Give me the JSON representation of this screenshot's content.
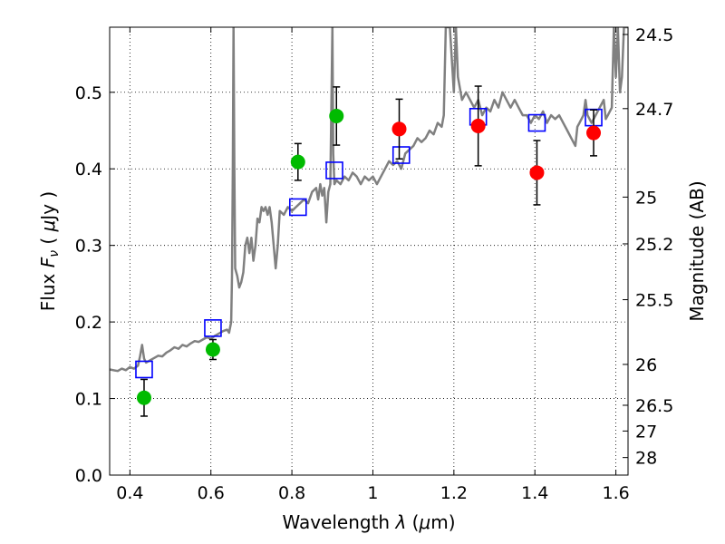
{
  "chart_data": {
    "type": "scatter",
    "xlabel": "Wavelength  λ (μm)",
    "ylabel": "Flux  F_ν  ( μJy )",
    "ylabel_parts": {
      "prefix": "Flux  ",
      "symbol": "F",
      "subscript": "ν",
      "open": "  ( ",
      "mu": "μ",
      "unit": "Jy )"
    },
    "xlabel_parts": {
      "prefix": "Wavelength  ",
      "symbol": "λ",
      "open": " (",
      "mu": "μ",
      "unit": "m)"
    },
    "y2label": "Magnitude (AB)",
    "xlim": [
      0.35,
      1.63
    ],
    "ylim": [
      0.0,
      0.585
    ],
    "xticks": [
      0.4,
      0.6,
      0.8,
      1.0,
      1.2,
      1.4,
      1.6
    ],
    "xtick_labels": [
      "0.4",
      "0.6",
      "0.8",
      "1",
      "1.2",
      "1.4",
      "1.6"
    ],
    "yticks": [
      0.0,
      0.1,
      0.2,
      0.3,
      0.4,
      0.5
    ],
    "ytick_labels": [
      "0.0",
      "0.1",
      "0.2",
      "0.3",
      "0.4",
      "0.5"
    ],
    "y2ticks": [
      24.5,
      24.7,
      25,
      25.2,
      25.5,
      26,
      26.5,
      27,
      28
    ],
    "y2tick_labels": [
      "24.5",
      "24.7",
      "25",
      "25.2",
      "25.5",
      "26",
      "26.5",
      "27",
      "28"
    ],
    "grid": true,
    "grid_style": "dotted",
    "series": [
      {
        "kind": "line",
        "color": "#808080",
        "points": [
          [
            0.35,
            0.138
          ],
          [
            0.37,
            0.136
          ],
          [
            0.38,
            0.139
          ],
          [
            0.39,
            0.137
          ],
          [
            0.4,
            0.141
          ],
          [
            0.41,
            0.139
          ],
          [
            0.42,
            0.143
          ],
          [
            0.425,
            0.155
          ],
          [
            0.43,
            0.17
          ],
          [
            0.435,
            0.152
          ],
          [
            0.44,
            0.147
          ],
          [
            0.45,
            0.15
          ],
          [
            0.46,
            0.153
          ],
          [
            0.47,
            0.156
          ],
          [
            0.48,
            0.155
          ],
          [
            0.49,
            0.16
          ],
          [
            0.5,
            0.163
          ],
          [
            0.51,
            0.167
          ],
          [
            0.52,
            0.165
          ],
          [
            0.53,
            0.17
          ],
          [
            0.54,
            0.168
          ],
          [
            0.55,
            0.172
          ],
          [
            0.56,
            0.175
          ],
          [
            0.57,
            0.174
          ],
          [
            0.58,
            0.177
          ],
          [
            0.59,
            0.18
          ],
          [
            0.6,
            0.178
          ],
          [
            0.61,
            0.182
          ],
          [
            0.62,
            0.185
          ],
          [
            0.63,
            0.188
          ],
          [
            0.64,
            0.19
          ],
          [
            0.645,
            0.186
          ],
          [
            0.65,
            0.2
          ],
          [
            0.652,
            0.26
          ],
          [
            0.654,
            0.4
          ],
          [
            0.656,
            0.585
          ],
          [
            0.658,
            0.4
          ],
          [
            0.66,
            0.27
          ],
          [
            0.665,
            0.26
          ],
          [
            0.67,
            0.245
          ],
          [
            0.675,
            0.252
          ],
          [
            0.68,
            0.265
          ],
          [
            0.685,
            0.3
          ],
          [
            0.69,
            0.31
          ],
          [
            0.695,
            0.29
          ],
          [
            0.7,
            0.31
          ],
          [
            0.705,
            0.28
          ],
          [
            0.71,
            0.3
          ],
          [
            0.715,
            0.335
          ],
          [
            0.72,
            0.33
          ],
          [
            0.725,
            0.35
          ],
          [
            0.73,
            0.345
          ],
          [
            0.735,
            0.35
          ],
          [
            0.74,
            0.34
          ],
          [
            0.745,
            0.35
          ],
          [
            0.75,
            0.33
          ],
          [
            0.755,
            0.3
          ],
          [
            0.76,
            0.27
          ],
          [
            0.765,
            0.3
          ],
          [
            0.77,
            0.345
          ],
          [
            0.78,
            0.34
          ],
          [
            0.79,
            0.35
          ],
          [
            0.8,
            0.345
          ],
          [
            0.81,
            0.35
          ],
          [
            0.82,
            0.355
          ],
          [
            0.83,
            0.36
          ],
          [
            0.84,
            0.355
          ],
          [
            0.85,
            0.37
          ],
          [
            0.86,
            0.375
          ],
          [
            0.865,
            0.36
          ],
          [
            0.87,
            0.38
          ],
          [
            0.875,
            0.365
          ],
          [
            0.88,
            0.375
          ],
          [
            0.885,
            0.33
          ],
          [
            0.89,
            0.37
          ],
          [
            0.895,
            0.38
          ],
          [
            0.9,
            0.585
          ],
          [
            0.902,
            0.42
          ],
          [
            0.905,
            0.38
          ],
          [
            0.91,
            0.385
          ],
          [
            0.92,
            0.38
          ],
          [
            0.93,
            0.39
          ],
          [
            0.94,
            0.385
          ],
          [
            0.95,
            0.395
          ],
          [
            0.96,
            0.39
          ],
          [
            0.97,
            0.38
          ],
          [
            0.98,
            0.39
          ],
          [
            0.99,
            0.385
          ],
          [
            1.0,
            0.39
          ],
          [
            1.01,
            0.38
          ],
          [
            1.02,
            0.39
          ],
          [
            1.03,
            0.4
          ],
          [
            1.04,
            0.41
          ],
          [
            1.05,
            0.405
          ],
          [
            1.06,
            0.41
          ],
          [
            1.07,
            0.4
          ],
          [
            1.08,
            0.42
          ],
          [
            1.09,
            0.425
          ],
          [
            1.1,
            0.43
          ],
          [
            1.11,
            0.44
          ],
          [
            1.12,
            0.435
          ],
          [
            1.13,
            0.44
          ],
          [
            1.14,
            0.45
          ],
          [
            1.15,
            0.445
          ],
          [
            1.16,
            0.46
          ],
          [
            1.17,
            0.455
          ],
          [
            1.175,
            0.47
          ],
          [
            1.18,
            0.585
          ],
          [
            1.19,
            0.585
          ],
          [
            1.2,
            0.5
          ],
          [
            1.205,
            0.585
          ],
          [
            1.21,
            0.52
          ],
          [
            1.22,
            0.49
          ],
          [
            1.23,
            0.5
          ],
          [
            1.24,
            0.49
          ],
          [
            1.25,
            0.48
          ],
          [
            1.26,
            0.49
          ],
          [
            1.27,
            0.47
          ],
          [
            1.28,
            0.48
          ],
          [
            1.29,
            0.475
          ],
          [
            1.3,
            0.49
          ],
          [
            1.31,
            0.48
          ],
          [
            1.32,
            0.5
          ],
          [
            1.33,
            0.49
          ],
          [
            1.34,
            0.48
          ],
          [
            1.35,
            0.49
          ],
          [
            1.36,
            0.48
          ],
          [
            1.37,
            0.47
          ],
          [
            1.38,
            0.47
          ],
          [
            1.39,
            0.46
          ],
          [
            1.4,
            0.47
          ],
          [
            1.41,
            0.465
          ],
          [
            1.42,
            0.475
          ],
          [
            1.43,
            0.46
          ],
          [
            1.44,
            0.47
          ],
          [
            1.45,
            0.465
          ],
          [
            1.46,
            0.47
          ],
          [
            1.47,
            0.46
          ],
          [
            1.48,
            0.45
          ],
          [
            1.49,
            0.44
          ],
          [
            1.5,
            0.43
          ],
          [
            1.505,
            0.455
          ],
          [
            1.51,
            0.46
          ],
          [
            1.52,
            0.47
          ],
          [
            1.525,
            0.49
          ],
          [
            1.53,
            0.47
          ],
          [
            1.54,
            0.46
          ],
          [
            1.55,
            0.47
          ],
          [
            1.56,
            0.48
          ],
          [
            1.57,
            0.49
          ],
          [
            1.575,
            0.465
          ],
          [
            1.58,
            0.47
          ],
          [
            1.59,
            0.48
          ],
          [
            1.595,
            0.585
          ],
          [
            1.6,
            0.52
          ],
          [
            1.605,
            0.585
          ],
          [
            1.61,
            0.5
          ],
          [
            1.615,
            0.52
          ],
          [
            1.62,
            0.585
          ],
          [
            1.625,
            0.585
          ],
          [
            1.63,
            0.585
          ]
        ]
      },
      {
        "kind": "model-squares",
        "color": "#0000ff",
        "points": [
          [
            0.435,
            0.138
          ],
          [
            0.605,
            0.192
          ],
          [
            0.815,
            0.35
          ],
          [
            0.905,
            0.398
          ],
          [
            1.07,
            0.418
          ],
          [
            1.26,
            0.468
          ],
          [
            1.405,
            0.46
          ],
          [
            1.545,
            0.467
          ]
        ]
      },
      {
        "kind": "points",
        "color": "#00bb00",
        "points": [
          {
            "x": 0.435,
            "y": 0.101,
            "err": 0.024
          },
          {
            "x": 0.605,
            "y": 0.164,
            "err": 0.013
          },
          {
            "x": 0.815,
            "y": 0.409,
            "err": 0.024
          },
          {
            "x": 0.91,
            "y": 0.469,
            "err": 0.038
          }
        ]
      },
      {
        "kind": "points",
        "color": "#ff0000",
        "points": [
          {
            "x": 1.065,
            "y": 0.452,
            "err": 0.039
          },
          {
            "x": 1.26,
            "y": 0.456,
            "err": 0.052
          },
          {
            "x": 1.405,
            "y": 0.395,
            "err": 0.042
          },
          {
            "x": 1.545,
            "y": 0.447,
            "err": 0.03
          }
        ]
      }
    ]
  }
}
